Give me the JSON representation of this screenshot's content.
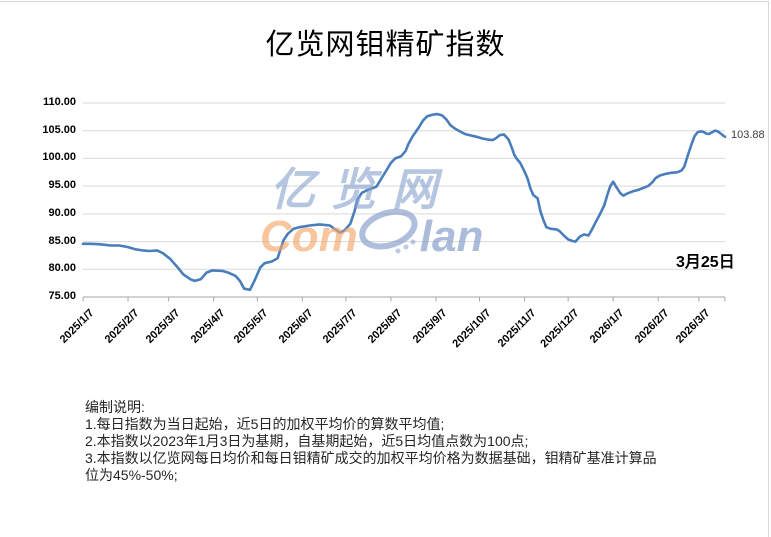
{
  "chart_data": {
    "type": "line",
    "title": "亿览网钼精矿指数",
    "legend": "none",
    "y_axis": {
      "min": 75,
      "max": 110,
      "step": 5,
      "grid": true,
      "tick_labels": [
        "110.00",
        "105.00",
        "100.00",
        "95.00",
        "90.00",
        "85.00",
        "80.00",
        "75.00"
      ],
      "tick_values": [
        110,
        105,
        100,
        95,
        90,
        85,
        80,
        75
      ]
    },
    "x_axis": {
      "labels": [
        "2025/1/7",
        "2025/2/7",
        "2025/3/7",
        "2025/4/7",
        "2025/5/7",
        "2025/6/7",
        "2025/7/7",
        "2025/8/7",
        "2025/9/7",
        "2025/10/7",
        "2025/11/7",
        "2025/12/7",
        "2026/1/7",
        "2026/2/7",
        "2026/3/7"
      ],
      "label_days": [
        0,
        31,
        59,
        90,
        120,
        151,
        181,
        212,
        243,
        273,
        304,
        334,
        365,
        396,
        424
      ],
      "range_days": [
        0,
        442
      ]
    },
    "series": [
      {
        "name": "亿览网钼精矿指数",
        "color": "#4a7ebb",
        "points": [
          [
            0,
            84.6
          ],
          [
            5,
            84.6
          ],
          [
            12,
            84.5
          ],
          [
            19,
            84.3
          ],
          [
            25,
            84.3
          ],
          [
            31,
            84.0
          ],
          [
            36,
            83.6
          ],
          [
            41,
            83.4
          ],
          [
            46,
            83.3
          ],
          [
            51,
            83.4
          ],
          [
            55,
            82.9
          ],
          [
            60,
            81.9
          ],
          [
            65,
            80.4
          ],
          [
            69,
            79.1
          ],
          [
            74,
            78.2
          ],
          [
            77,
            77.9
          ],
          [
            81,
            78.2
          ],
          [
            85,
            79.4
          ],
          [
            89,
            79.8
          ],
          [
            96,
            79.7
          ],
          [
            100,
            79.4
          ],
          [
            105,
            78.8
          ],
          [
            108,
            77.9
          ],
          [
            111,
            76.5
          ],
          [
            115,
            76.3
          ],
          [
            118,
            77.9
          ],
          [
            122,
            80.3
          ],
          [
            125,
            81.1
          ],
          [
            130,
            81.4
          ],
          [
            134,
            82.0
          ],
          [
            136,
            83.6
          ],
          [
            138,
            85.2
          ],
          [
            141,
            86.4
          ],
          [
            145,
            87.3
          ],
          [
            149,
            87.6
          ],
          [
            156,
            87.9
          ],
          [
            163,
            88.1
          ],
          [
            170,
            87.9
          ],
          [
            173,
            87.3
          ],
          [
            177,
            86.6
          ],
          [
            180,
            87.0
          ],
          [
            184,
            88.2
          ],
          [
            187,
            90.5
          ],
          [
            189,
            92.6
          ],
          [
            192,
            93.8
          ],
          [
            195,
            94.2
          ],
          [
            198,
            94.5
          ],
          [
            202,
            94.9
          ],
          [
            205,
            96.2
          ],
          [
            209,
            97.9
          ],
          [
            212,
            99.2
          ],
          [
            215,
            100.0
          ],
          [
            219,
            100.4
          ],
          [
            222,
            101.3
          ],
          [
            224,
            102.6
          ],
          [
            227,
            104.0
          ],
          [
            231,
            105.5
          ],
          [
            234,
            106.8
          ],
          [
            237,
            107.6
          ],
          [
            241,
            107.9
          ],
          [
            244,
            108.0
          ],
          [
            247,
            107.8
          ],
          [
            250,
            107.1
          ],
          [
            253,
            106.0
          ],
          [
            256,
            105.4
          ],
          [
            260,
            104.8
          ],
          [
            263,
            104.4
          ],
          [
            266,
            104.2
          ],
          [
            271,
            103.9
          ],
          [
            275,
            103.6
          ],
          [
            279,
            103.4
          ],
          [
            282,
            103.3
          ],
          [
            284,
            103.6
          ],
          [
            287,
            104.2
          ],
          [
            290,
            104.3
          ],
          [
            293,
            103.4
          ],
          [
            295,
            102.1
          ],
          [
            297,
            100.6
          ],
          [
            299,
            99.8
          ],
          [
            301,
            99.2
          ],
          [
            304,
            97.6
          ],
          [
            306,
            96.4
          ],
          [
            308,
            94.6
          ],
          [
            310,
            93.4
          ],
          [
            313,
            92.8
          ],
          [
            315,
            90.4
          ],
          [
            317,
            88.9
          ],
          [
            319,
            87.6
          ],
          [
            322,
            87.3
          ],
          [
            326,
            87.2
          ],
          [
            328,
            86.9
          ],
          [
            331,
            86.1
          ],
          [
            334,
            85.4
          ],
          [
            337,
            85.1
          ],
          [
            339,
            85.0
          ],
          [
            342,
            85.9
          ],
          [
            345,
            86.3
          ],
          [
            348,
            86.1
          ],
          [
            350,
            87.0
          ],
          [
            353,
            88.5
          ],
          [
            356,
            90.0
          ],
          [
            359,
            91.6
          ],
          [
            361,
            93.4
          ],
          [
            363,
            95.0
          ],
          [
            365,
            95.8
          ],
          [
            367,
            94.9
          ],
          [
            370,
            93.7
          ],
          [
            372,
            93.3
          ],
          [
            375,
            93.7
          ],
          [
            379,
            94.1
          ],
          [
            382,
            94.3
          ],
          [
            385,
            94.6
          ],
          [
            389,
            95.0
          ],
          [
            392,
            95.7
          ],
          [
            394,
            96.4
          ],
          [
            397,
            96.9
          ],
          [
            401,
            97.2
          ],
          [
            405,
            97.4
          ],
          [
            409,
            97.5
          ],
          [
            412,
            97.8
          ],
          [
            414,
            98.5
          ],
          [
            416,
            100.2
          ],
          [
            419,
            102.6
          ],
          [
            421,
            104.0
          ],
          [
            423,
            104.7
          ],
          [
            425,
            104.9
          ],
          [
            427,
            104.8
          ],
          [
            429,
            104.5
          ],
          [
            431,
            104.4
          ],
          [
            433,
            104.7
          ],
          [
            435,
            105.0
          ],
          [
            437,
            104.9
          ],
          [
            439,
            104.5
          ],
          [
            442,
            103.88
          ]
        ]
      }
    ],
    "end_label": "103.88",
    "annotation": "3月25日"
  },
  "watermark": {
    "cn": "亿览网",
    "en_com": "Com",
    "en_lan": "lan",
    "color_blue": "#8ea7cd",
    "color_orange": "#f3a66a"
  },
  "footnotes": {
    "lines": [
      "编制说明:",
      "1.每日指数为当日起始，近5日的加权平均价的算数平均值;",
      "2.本指数以2023年1月3日为基期，自基期起始，近5日均值点数为100点;",
      "3.本指数以亿览网每日均价和每日钼精矿成交的加权平均价格为数据基础，钼精矿基准计算品",
      "位为45%-50%;"
    ]
  },
  "colors": {
    "line": "#4a7ebb",
    "gridline": "#d9d9d9",
    "axis": "#a6a6a6",
    "border": "#d9d9d9",
    "end_label": "#404040"
  }
}
